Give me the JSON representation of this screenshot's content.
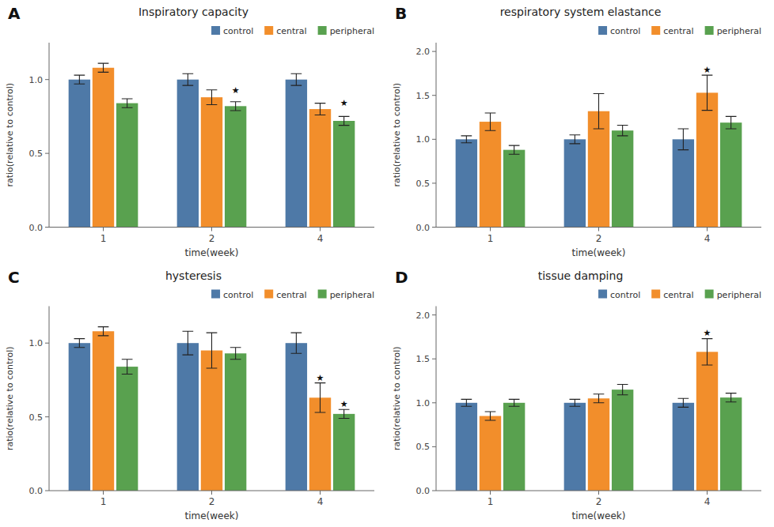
{
  "chart_data": [
    {
      "type": "bar",
      "title": "Inspiratory capacity",
      "xlabel": "time(week)",
      "ylabel": "ratio(relative to control)",
      "categories": [
        "1",
        "2",
        "4"
      ],
      "series": [
        {
          "name": "control",
          "values": [
            1.0,
            1.0,
            1.0
          ],
          "errors": [
            0.03,
            0.04,
            0.04
          ]
        },
        {
          "name": "central",
          "values": [
            1.08,
            0.88,
            0.8
          ],
          "errors": [
            0.03,
            0.05,
            0.04
          ]
        },
        {
          "name": "peripheral",
          "values": [
            0.84,
            0.82,
            0.72
          ],
          "errors": [
            0.03,
            0.03,
            0.03
          ]
        }
      ],
      "ylim": [
        0.0,
        1.25
      ],
      "yticks": [
        {
          "value": 0.0,
          "label": "0.0"
        },
        0.5,
        {
          "value": 1.0,
          "label": "1.0"
        }
      ],
      "grid": false,
      "legend": "upper right",
      "annotations": [
        {
          "text": "A"
        },
        {
          "text": "★",
          "category": "2",
          "series": "peripheral",
          "y": 0.905
        },
        {
          "text": "★",
          "category": "4",
          "series": "peripheral",
          "y": 0.82
        }
      ]
    },
    {
      "type": "bar",
      "title": "respiratory system elastance",
      "xlabel": "time(week)",
      "ylabel": "ratio(relative to control)",
      "categories": [
        "1",
        "2",
        "4"
      ],
      "series": [
        {
          "name": "control",
          "values": [
            1.0,
            1.0,
            1.0
          ],
          "errors": [
            0.04,
            0.05,
            0.12
          ]
        },
        {
          "name": "central",
          "values": [
            1.2,
            1.32,
            1.53
          ],
          "errors": [
            0.1,
            0.2,
            0.2
          ]
        },
        {
          "name": "peripheral",
          "values": [
            0.88,
            1.1,
            1.19
          ],
          "errors": [
            0.05,
            0.06,
            0.07
          ]
        }
      ],
      "ylim": [
        0.0,
        2.1
      ],
      "yticks": [
        {
          "value": 0.0,
          "label": "0.0"
        },
        0.5,
        {
          "value": 1.0,
          "label": "1.0"
        },
        1.5,
        {
          "value": 2.0,
          "label": "2.0"
        }
      ],
      "grid": false,
      "legend": "upper right",
      "annotations": [
        {
          "text": "B"
        },
        {
          "text": "★",
          "category": "4",
          "series": "central",
          "y": 1.76
        }
      ]
    },
    {
      "type": "bar",
      "title": "hysteresis",
      "xlabel": "time(week)",
      "ylabel": "ratio(relative to control)",
      "categories": [
        "1",
        "2",
        "4"
      ],
      "series": [
        {
          "name": "control",
          "values": [
            1.0,
            1.0,
            1.0
          ],
          "errors": [
            0.03,
            0.08,
            0.07
          ]
        },
        {
          "name": "central",
          "values": [
            1.08,
            0.95,
            0.63
          ],
          "errors": [
            0.03,
            0.12,
            0.1
          ]
        },
        {
          "name": "peripheral",
          "values": [
            0.84,
            0.93,
            0.52
          ],
          "errors": [
            0.05,
            0.04,
            0.03
          ]
        }
      ],
      "ylim": [
        0.0,
        1.25
      ],
      "yticks": [
        {
          "value": 0.0,
          "label": "0.0"
        },
        0.5,
        {
          "value": 1.0,
          "label": "1.0"
        }
      ],
      "grid": false,
      "legend": "upper right",
      "annotations": [
        {
          "text": "C"
        },
        {
          "text": "★",
          "category": "4",
          "series": "central",
          "y": 0.745
        },
        {
          "text": "★",
          "category": "4",
          "series": "peripheral",
          "y": 0.565
        }
      ]
    },
    {
      "type": "bar",
      "title": "tissue damping",
      "xlabel": "time(week)",
      "ylabel": "ratio(relative to control)",
      "categories": [
        "1",
        "2",
        "4"
      ],
      "series": [
        {
          "name": "control",
          "values": [
            1.0,
            1.0,
            1.0
          ],
          "errors": [
            0.04,
            0.04,
            0.05
          ]
        },
        {
          "name": "central",
          "values": [
            0.85,
            1.05,
            1.58
          ],
          "errors": [
            0.05,
            0.05,
            0.15
          ]
        },
        {
          "name": "peripheral",
          "values": [
            1.0,
            1.15,
            1.06
          ],
          "errors": [
            0.04,
            0.06,
            0.05
          ]
        }
      ],
      "ylim": [
        0.0,
        2.1
      ],
      "yticks": [
        {
          "value": 0.0,
          "label": "0.0"
        },
        0.5,
        {
          "value": 1.0,
          "label": "1.0"
        },
        1.5,
        {
          "value": 2.0,
          "label": "2.0"
        }
      ],
      "grid": false,
      "legend": "upper right",
      "annotations": [
        {
          "text": "D"
        },
        {
          "text": "★",
          "category": "4",
          "series": "central",
          "y": 1.76
        }
      ]
    }
  ]
}
